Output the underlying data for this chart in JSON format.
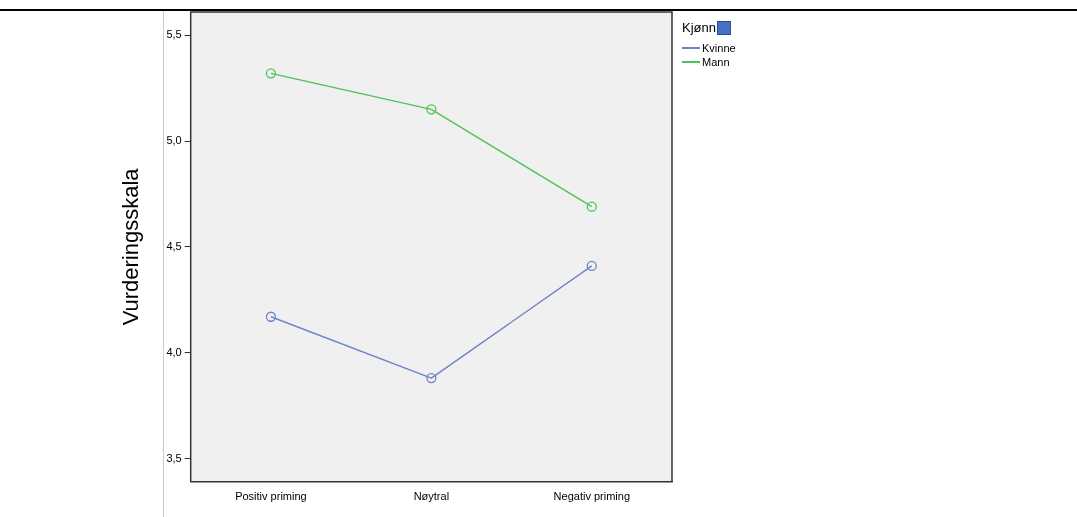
{
  "chart_data": {
    "type": "line",
    "ylabel": "Vurderingsskala",
    "legend_title": "Kjønn",
    "categories": [
      "Positiv priming",
      "Nøytral",
      "Negativ priming"
    ],
    "series": [
      {
        "name": "Kvinne",
        "color": "#6f82c8",
        "values": [
          4.17,
          3.88,
          4.41
        ]
      },
      {
        "name": "Mann",
        "color": "#4fc456",
        "values": [
          5.32,
          5.15,
          4.69
        ]
      }
    ],
    "ylim": [
      3.39,
      5.61
    ],
    "yticks": [
      {
        "value": 3.5,
        "label": "3,5"
      },
      {
        "value": 4,
        "label": "4,0"
      },
      {
        "value": 4.5,
        "label": "4,5"
      },
      {
        "value": 5,
        "label": "5,0"
      },
      {
        "value": 5.5,
        "label": "5,5"
      }
    ],
    "grid": false,
    "legend": "top right",
    "marker": "circle",
    "line_style": "solid"
  }
}
